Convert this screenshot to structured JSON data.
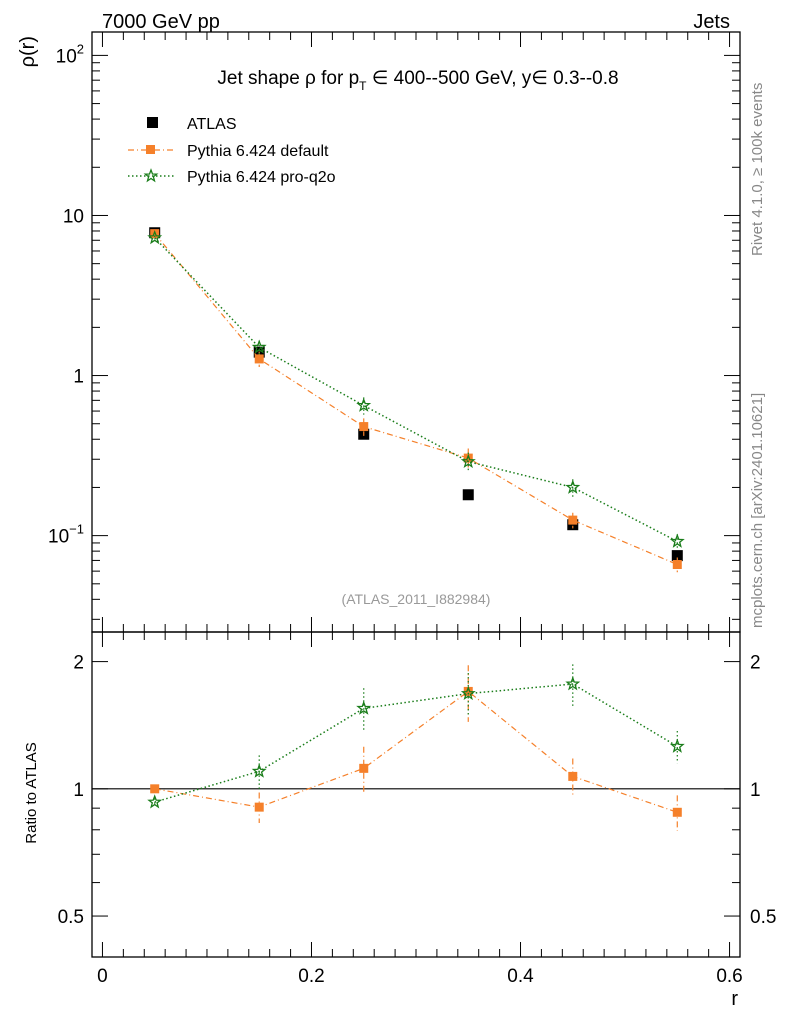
{
  "header": {
    "left": "7000 GeV pp",
    "right": "Jets"
  },
  "side_labels": {
    "rivet": "Rivet 4.1.0, ≥ 100k events",
    "mcplots": "mcplots.cern.ch [arXiv:2401.10621]"
  },
  "chart_data": [
    {
      "type": "line",
      "panel": "main",
      "title": "Jet shape ρ for p_T ∈ 400--500 GeV, y∈ 0.3--0.8",
      "title_parts": {
        "prefix": "Jet shape ρ for p",
        "subscript": "T",
        "suffix": " ∈ 400--500 GeV, y∈ 0.3--0.8"
      },
      "ylabel": "ρ(r)",
      "yscale": "log",
      "ylim": [
        0.025,
        140
      ],
      "xlim": [
        -0.01,
        0.61
      ],
      "y_tick_labels": [
        {
          "value": 0.1,
          "base": "10",
          "exp": "−1"
        },
        {
          "value": 1,
          "base": "1",
          "exp": ""
        },
        {
          "value": 10,
          "base": "10",
          "exp": ""
        },
        {
          "value": 100,
          "base": "10",
          "exp": "2"
        }
      ],
      "annotation": "(ATLAS_2011_I882984)",
      "legend": {
        "position": "top-left",
        "entries": [
          "ATLAS",
          "Pythia 6.424 default",
          "Pythia 6.424 pro-q2o"
        ]
      },
      "series": [
        {
          "name": "ATLAS",
          "style": "data",
          "color": "#000000",
          "x": [
            0.05,
            0.15,
            0.25,
            0.35,
            0.45,
            0.55
          ],
          "y": [
            7.8,
            1.4,
            0.43,
            0.18,
            0.117,
            0.075
          ],
          "err": [
            0.3,
            0.06,
            0.02,
            0.008,
            0.006,
            0.004
          ]
        },
        {
          "name": "Pythia 6.424 default",
          "style": "dashdot",
          "marker": "square",
          "color": "#f5802a",
          "x": [
            0.05,
            0.15,
            0.25,
            0.35,
            0.45,
            0.55
          ],
          "y": [
            7.7,
            1.27,
            0.48,
            0.305,
            0.125,
            0.066
          ],
          "err": [
            0.25,
            0.14,
            0.06,
            0.045,
            0.014,
            0.007
          ]
        },
        {
          "name": "Pythia 6.424 pro-q2o",
          "style": "dotted",
          "marker": "star",
          "color": "#1a7d1a",
          "x": [
            0.05,
            0.15,
            0.25,
            0.35,
            0.45,
            0.55
          ],
          "y": [
            7.25,
            1.5,
            0.65,
            0.29,
            0.2,
            0.092
          ],
          "err": [
            0.25,
            0.15,
            0.08,
            0.04,
            0.025,
            0.01
          ]
        }
      ]
    },
    {
      "type": "line",
      "panel": "ratio",
      "ylabel": "Ratio to ATLAS",
      "xlabel": "r",
      "yscale": "log",
      "ylim": [
        0.4,
        2.35
      ],
      "xlim": [
        -0.01,
        0.61
      ],
      "x_ticks": [
        0,
        0.2,
        0.4,
        0.6
      ],
      "x_tick_labels": [
        "0",
        "0.2",
        "0.4",
        "0.6"
      ],
      "y_ticks": [
        0.5,
        1,
        2
      ],
      "y_tick_labels": [
        "0.5",
        "1",
        "2"
      ],
      "reference_line": 1,
      "series": [
        {
          "name": "Pythia 6.424 default",
          "style": "dashdot",
          "marker": "square",
          "color": "#f5802a",
          "x": [
            0.05,
            0.15,
            0.25,
            0.35,
            0.45,
            0.55
          ],
          "y": [
            1.0,
            0.905,
            1.118,
            1.7,
            1.07,
            0.88
          ],
          "err": [
            0.02,
            0.075,
            0.14,
            0.26,
            0.11,
            0.085
          ]
        },
        {
          "name": "Pythia 6.424 pro-q2o",
          "style": "dotted",
          "marker": "star",
          "color": "#1a7d1a",
          "x": [
            0.05,
            0.15,
            0.25,
            0.35,
            0.45,
            0.55
          ],
          "y": [
            0.93,
            1.1,
            1.55,
            1.68,
            1.77,
            1.26
          ],
          "err": [
            0.02,
            0.1,
            0.18,
            0.2,
            0.2,
            0.11
          ]
        }
      ]
    }
  ]
}
